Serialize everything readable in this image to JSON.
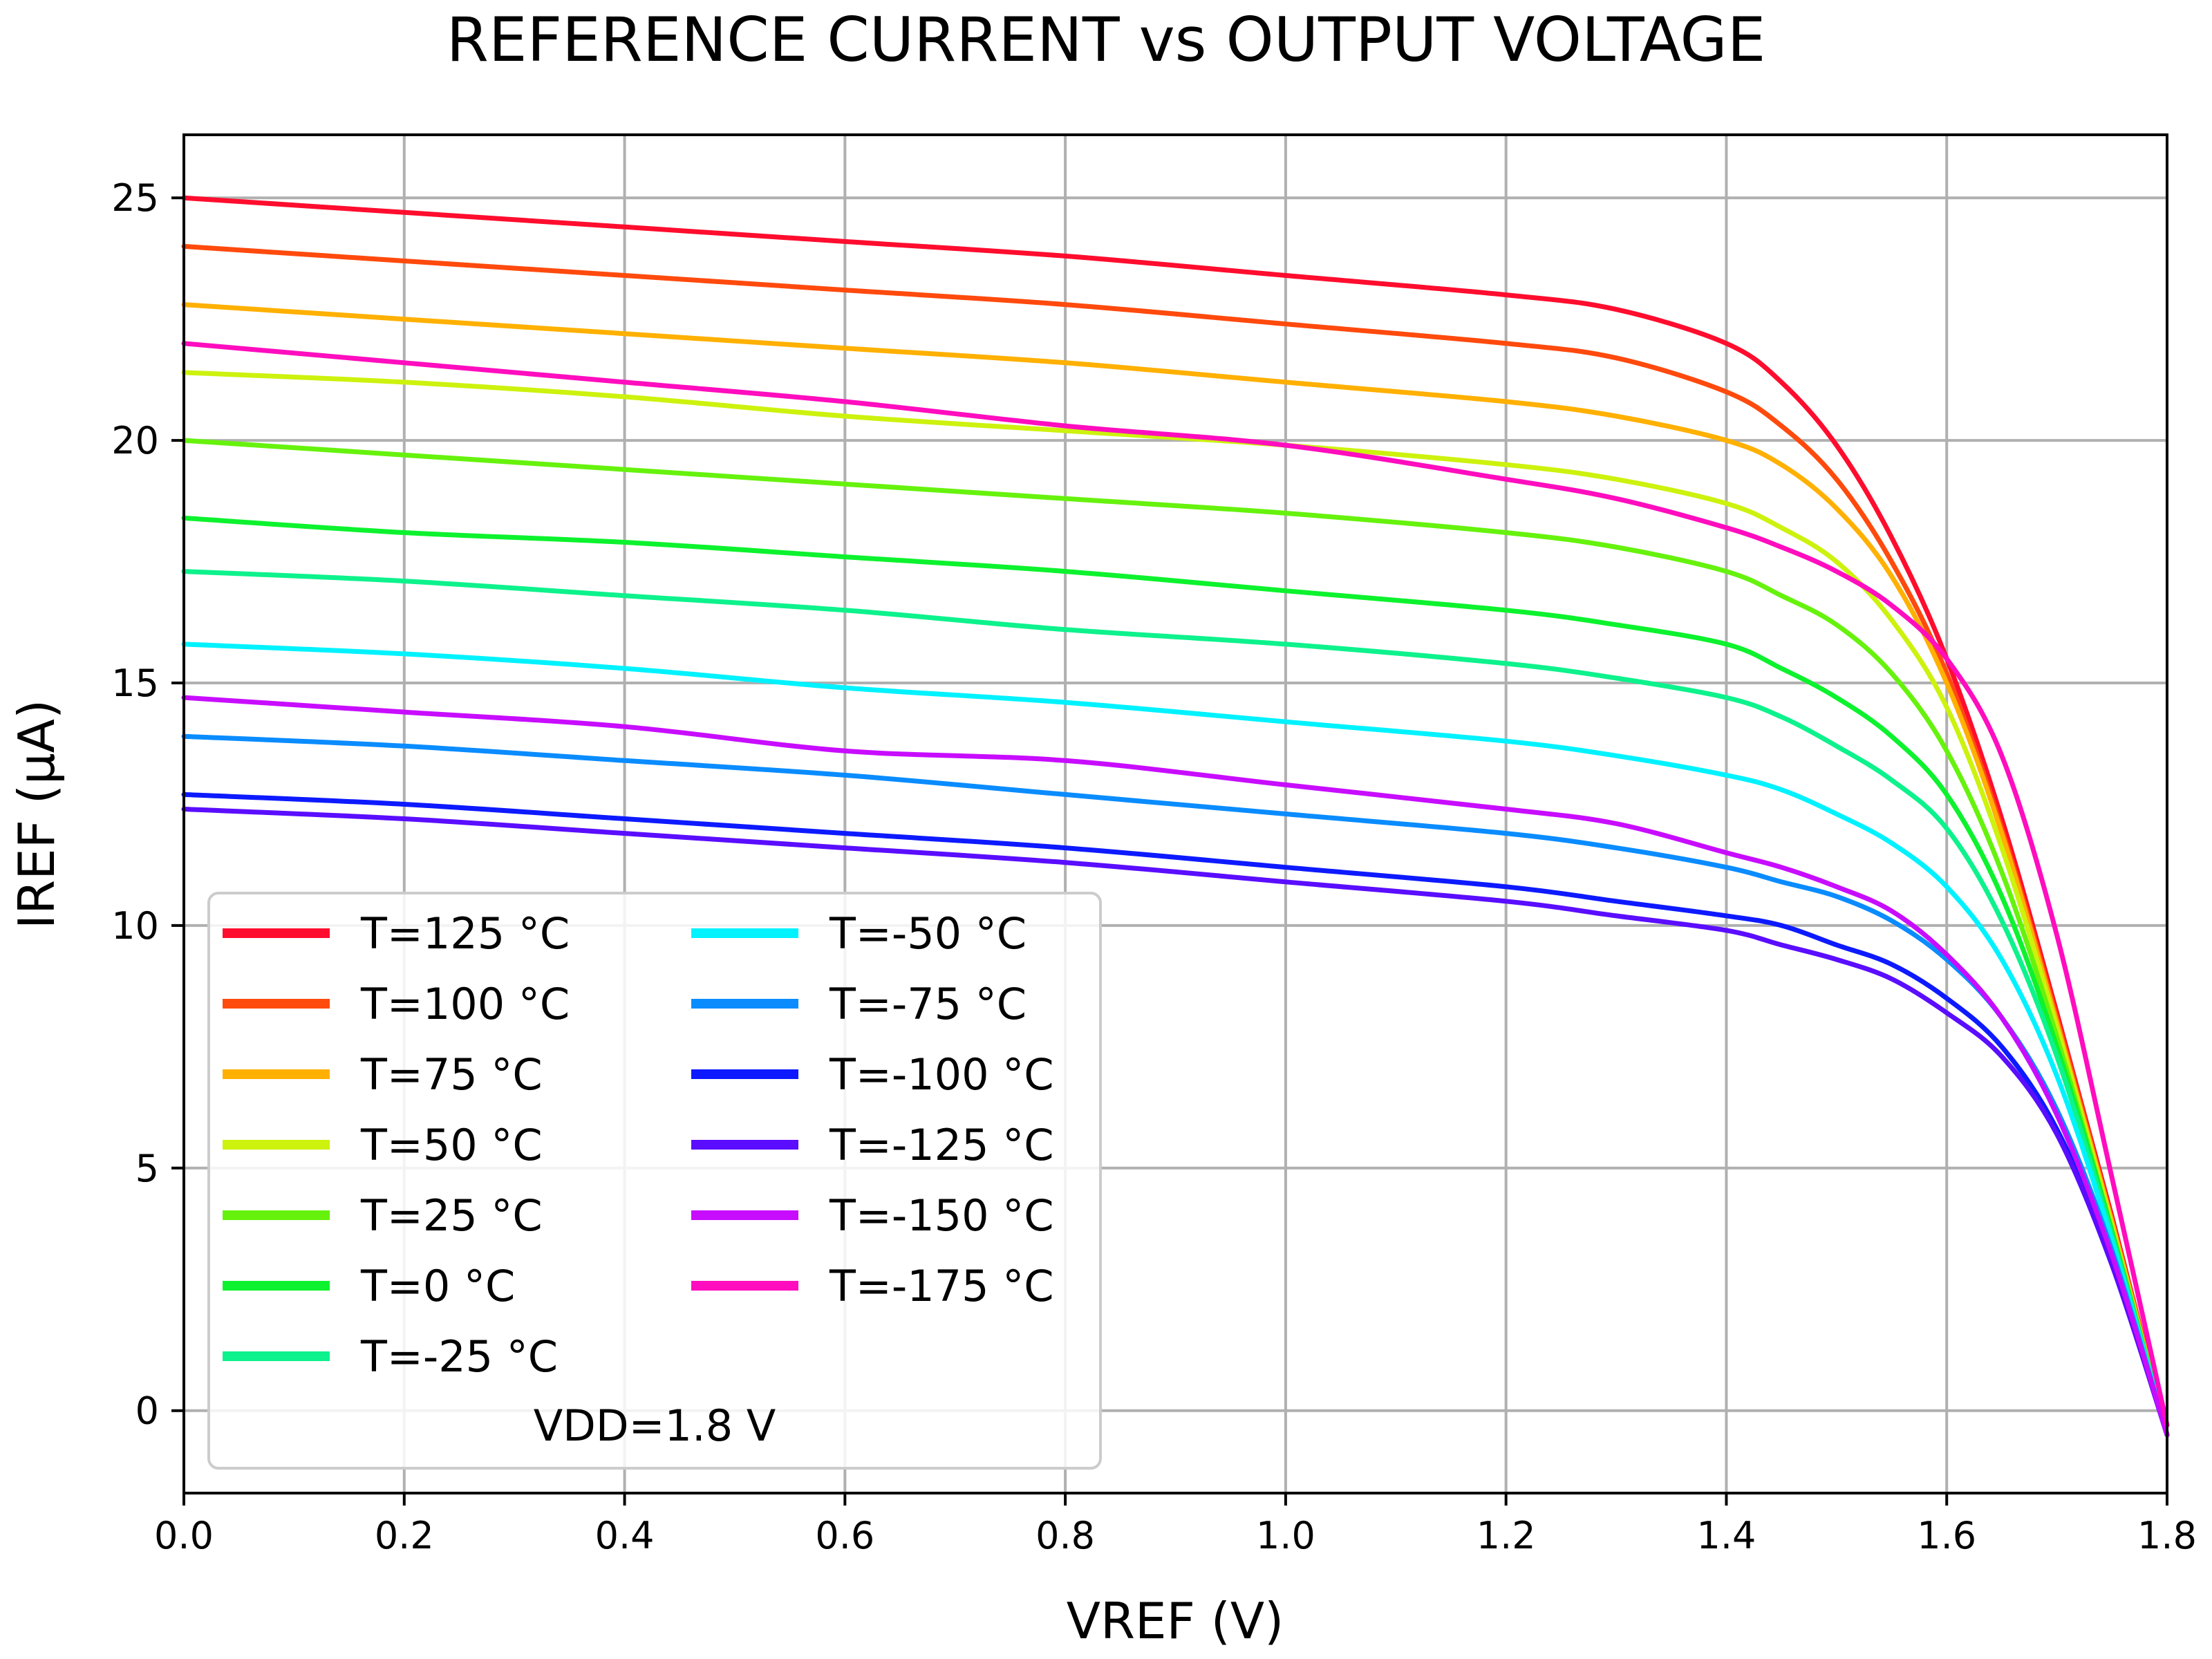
{
  "chart_data": {
    "type": "line",
    "title": "REFERENCE CURRENT vs OUTPUT VOLTAGE",
    "xlabel": "VREF (V)",
    "ylabel": "IREF (µA)",
    "xlim": [
      0.0,
      1.8
    ],
    "ylim": [
      -1.7,
      26.3
    ],
    "xticks": [
      0.0,
      0.2,
      0.4,
      0.6,
      0.8,
      1.0,
      1.2,
      1.4,
      1.6,
      1.8
    ],
    "xtick_labels": [
      "0.0",
      "0.2",
      "0.4",
      "0.6",
      "0.8",
      "1.0",
      "1.2",
      "1.4",
      "1.6",
      "1.8"
    ],
    "yticks": [
      0,
      5,
      10,
      15,
      20,
      25
    ],
    "ytick_labels": [
      "0",
      "5",
      "10",
      "15",
      "20",
      "25"
    ],
    "grid": true,
    "legend_position": "bottom-left",
    "legend_columns": 2,
    "annotation": "VDD=1.8 V",
    "x": [
      0.0,
      0.2,
      0.4,
      0.6,
      0.8,
      1.0,
      1.2,
      1.3,
      1.4,
      1.45,
      1.5,
      1.55,
      1.6,
      1.65,
      1.7,
      1.75,
      1.8
    ],
    "series": [
      {
        "name": "T=125 °C",
        "color": "#ff0d2e",
        "values": [
          25.0,
          24.7,
          24.4,
          24.1,
          23.8,
          23.4,
          23.0,
          22.7,
          22.0,
          21.2,
          19.9,
          18.0,
          15.5,
          12.2,
          8.2,
          4.0,
          -0.5
        ]
      },
      {
        "name": "T=100 °C",
        "color": "#ff4a0d",
        "values": [
          24.0,
          23.7,
          23.4,
          23.1,
          22.8,
          22.4,
          22.0,
          21.7,
          21.0,
          20.3,
          19.2,
          17.5,
          15.2,
          12.0,
          8.1,
          3.9,
          -0.5
        ]
      },
      {
        "name": "T=75 °C",
        "color": "#ffb000",
        "values": [
          22.8,
          22.5,
          22.2,
          21.9,
          21.6,
          21.2,
          20.8,
          20.5,
          20.0,
          19.5,
          18.6,
          17.2,
          15.0,
          11.9,
          8.0,
          3.9,
          -0.5
        ]
      },
      {
        "name": "T=50 °C",
        "color": "#ccf20d",
        "values": [
          21.4,
          21.2,
          20.9,
          20.5,
          20.2,
          19.9,
          19.5,
          19.2,
          18.7,
          18.2,
          17.5,
          16.3,
          14.5,
          11.6,
          7.9,
          3.8,
          -0.5
        ]
      },
      {
        "name": "T=25 °C",
        "color": "#66f20d",
        "values": [
          20.0,
          19.7,
          19.4,
          19.1,
          18.8,
          18.5,
          18.1,
          17.8,
          17.3,
          16.8,
          16.2,
          15.2,
          13.6,
          11.1,
          7.7,
          3.7,
          -0.5
        ]
      },
      {
        "name": "T=0 °C",
        "color": "#0df22e",
        "values": [
          18.4,
          18.1,
          17.9,
          17.6,
          17.3,
          16.9,
          16.5,
          16.2,
          15.8,
          15.3,
          14.7,
          13.9,
          12.7,
          10.6,
          7.5,
          3.7,
          -0.5
        ]
      },
      {
        "name": "T=-25 °C",
        "color": "#0df28c",
        "values": [
          17.3,
          17.1,
          16.8,
          16.5,
          16.1,
          15.8,
          15.4,
          15.1,
          14.7,
          14.3,
          13.7,
          13.0,
          12.0,
          10.1,
          7.3,
          3.6,
          -0.5
        ]
      },
      {
        "name": "T=-50 °C",
        "color": "#00f2ff",
        "values": [
          15.8,
          15.6,
          15.3,
          14.9,
          14.6,
          14.2,
          13.8,
          13.5,
          13.1,
          12.8,
          12.3,
          11.7,
          10.8,
          9.3,
          6.9,
          3.5,
          -0.5
        ]
      },
      {
        "name": "T=-75 °C",
        "color": "#0a8cff",
        "values": [
          13.9,
          13.7,
          13.4,
          13.1,
          12.7,
          12.3,
          11.9,
          11.6,
          11.2,
          10.9,
          10.6,
          10.1,
          9.3,
          8.1,
          6.2,
          3.3,
          -0.5
        ]
      },
      {
        "name": "T=-100 °C",
        "color": "#0d1aff",
        "values": [
          12.7,
          12.5,
          12.2,
          11.9,
          11.6,
          11.2,
          10.8,
          10.5,
          10.2,
          10.0,
          9.6,
          9.2,
          8.5,
          7.5,
          5.8,
          3.1,
          -0.5
        ]
      },
      {
        "name": "T=-125 °C",
        "color": "#5a0dff",
        "values": [
          12.4,
          12.2,
          11.9,
          11.6,
          11.3,
          10.9,
          10.5,
          10.2,
          9.9,
          9.6,
          9.3,
          8.9,
          8.2,
          7.3,
          5.7,
          3.0,
          -0.5
        ]
      },
      {
        "name": "T=-150 °C",
        "color": "#c80dff",
        "values": [
          14.7,
          14.4,
          14.1,
          13.6,
          13.4,
          12.9,
          12.4,
          12.1,
          11.5,
          11.2,
          10.8,
          10.3,
          9.4,
          8.1,
          6.1,
          3.2,
          -0.5
        ]
      },
      {
        "name": "T=-175 °C",
        "color": "#ff0dbe",
        "values": [
          22.0,
          21.6,
          21.2,
          20.8,
          20.3,
          19.9,
          19.2,
          18.8,
          18.2,
          17.8,
          17.3,
          16.6,
          15.5,
          13.5,
          9.8,
          4.8,
          -0.3
        ]
      }
    ]
  }
}
